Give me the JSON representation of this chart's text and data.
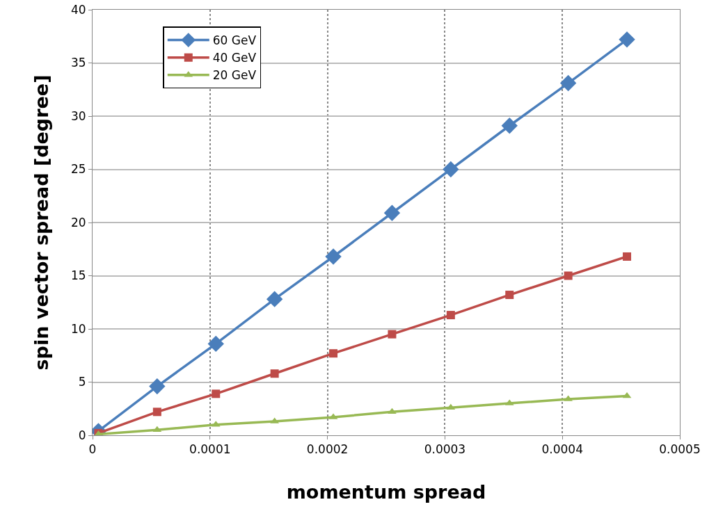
{
  "chart_data": {
    "type": "line",
    "xlabel": "momentum spread",
    "ylabel": "spin vector spread [degree]",
    "x": [
      5e-06,
      5.5e-05,
      0.000105,
      0.000155,
      0.000205,
      0.000255,
      0.000305,
      0.000355,
      0.000405,
      0.000455
    ],
    "series": [
      {
        "name": "60 GeV",
        "color": "#4a7ebb",
        "marker": "diamond",
        "values": [
          0.4,
          4.6,
          8.6,
          12.8,
          16.8,
          20.9,
          25.0,
          29.1,
          33.1,
          37.2
        ]
      },
      {
        "name": "40 GeV",
        "color": "#be4b48",
        "marker": "square",
        "values": [
          0.2,
          2.2,
          3.9,
          5.8,
          7.7,
          9.5,
          11.3,
          13.2,
          15.0,
          16.8
        ]
      },
      {
        "name": "20 GeV",
        "color": "#98b954",
        "marker": "triangle",
        "values": [
          0.1,
          0.5,
          1.0,
          1.3,
          1.7,
          2.2,
          2.6,
          3.0,
          3.4,
          3.7
        ]
      }
    ],
    "xlim": [
      0,
      0.0005
    ],
    "xticks": [
      0,
      0.0001,
      0.0002,
      0.0003,
      0.0004,
      0.0005
    ],
    "ylim": [
      0,
      40
    ],
    "yticks": [
      0,
      5,
      10,
      15,
      20,
      25,
      30,
      35,
      40
    ],
    "grid": true,
    "legend": "top left",
    "line_style": "solid"
  }
}
